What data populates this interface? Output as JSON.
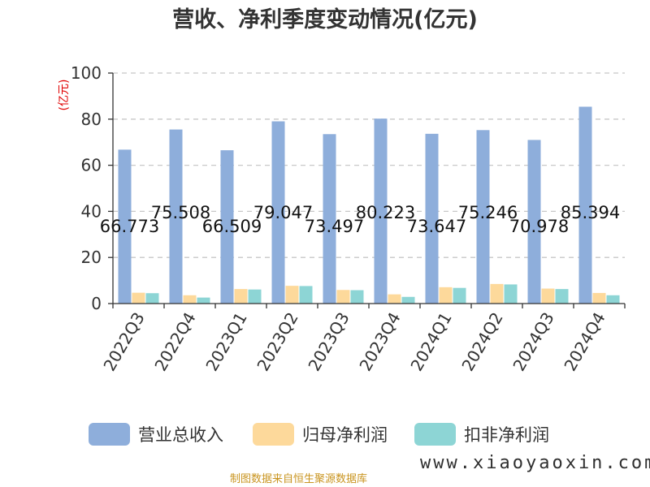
{
  "chart_data": {
    "type": "bar",
    "title": "营收、净利季度变动情况(亿元)",
    "ylabel": "(亿元)",
    "ylim": [
      0,
      100
    ],
    "yticks": [
      0,
      20,
      40,
      60,
      80,
      100
    ],
    "grid": true,
    "legend_position": "bottom",
    "categories": [
      "2022Q3",
      "2022Q4",
      "2023Q1",
      "2023Q2",
      "2023Q3",
      "2023Q4",
      "2024Q1",
      "2024Q2",
      "2024Q3",
      "2024Q4"
    ],
    "series": [
      {
        "name": "营业总收入",
        "color": "#8eaedb",
        "values": [
          66.773,
          75.508,
          66.509,
          79.047,
          73.497,
          80.223,
          73.647,
          75.246,
          70.978,
          85.394
        ]
      },
      {
        "name": "归母净利润",
        "color": "#fdd99b",
        "values": [
          4.7,
          3.6,
          6.3,
          7.7,
          5.9,
          4.0,
          7.1,
          8.5,
          6.5,
          4.6
        ]
      },
      {
        "name": "扣非净利润",
        "color": "#8dd5d5",
        "values": [
          4.5,
          2.6,
          6.1,
          7.6,
          5.8,
          2.9,
          6.8,
          8.3,
          6.3,
          3.6
        ]
      }
    ],
    "data_labels": [
      "66.773",
      "75.508",
      "66.509",
      "79.047",
      "73.497",
      "80.223",
      "73.647",
      "75.246",
      "70.978",
      "85.394"
    ]
  },
  "footer": {
    "source": "制图数据来自恒生聚源数据库",
    "watermark": "www.xiaoyaoxin.com"
  }
}
